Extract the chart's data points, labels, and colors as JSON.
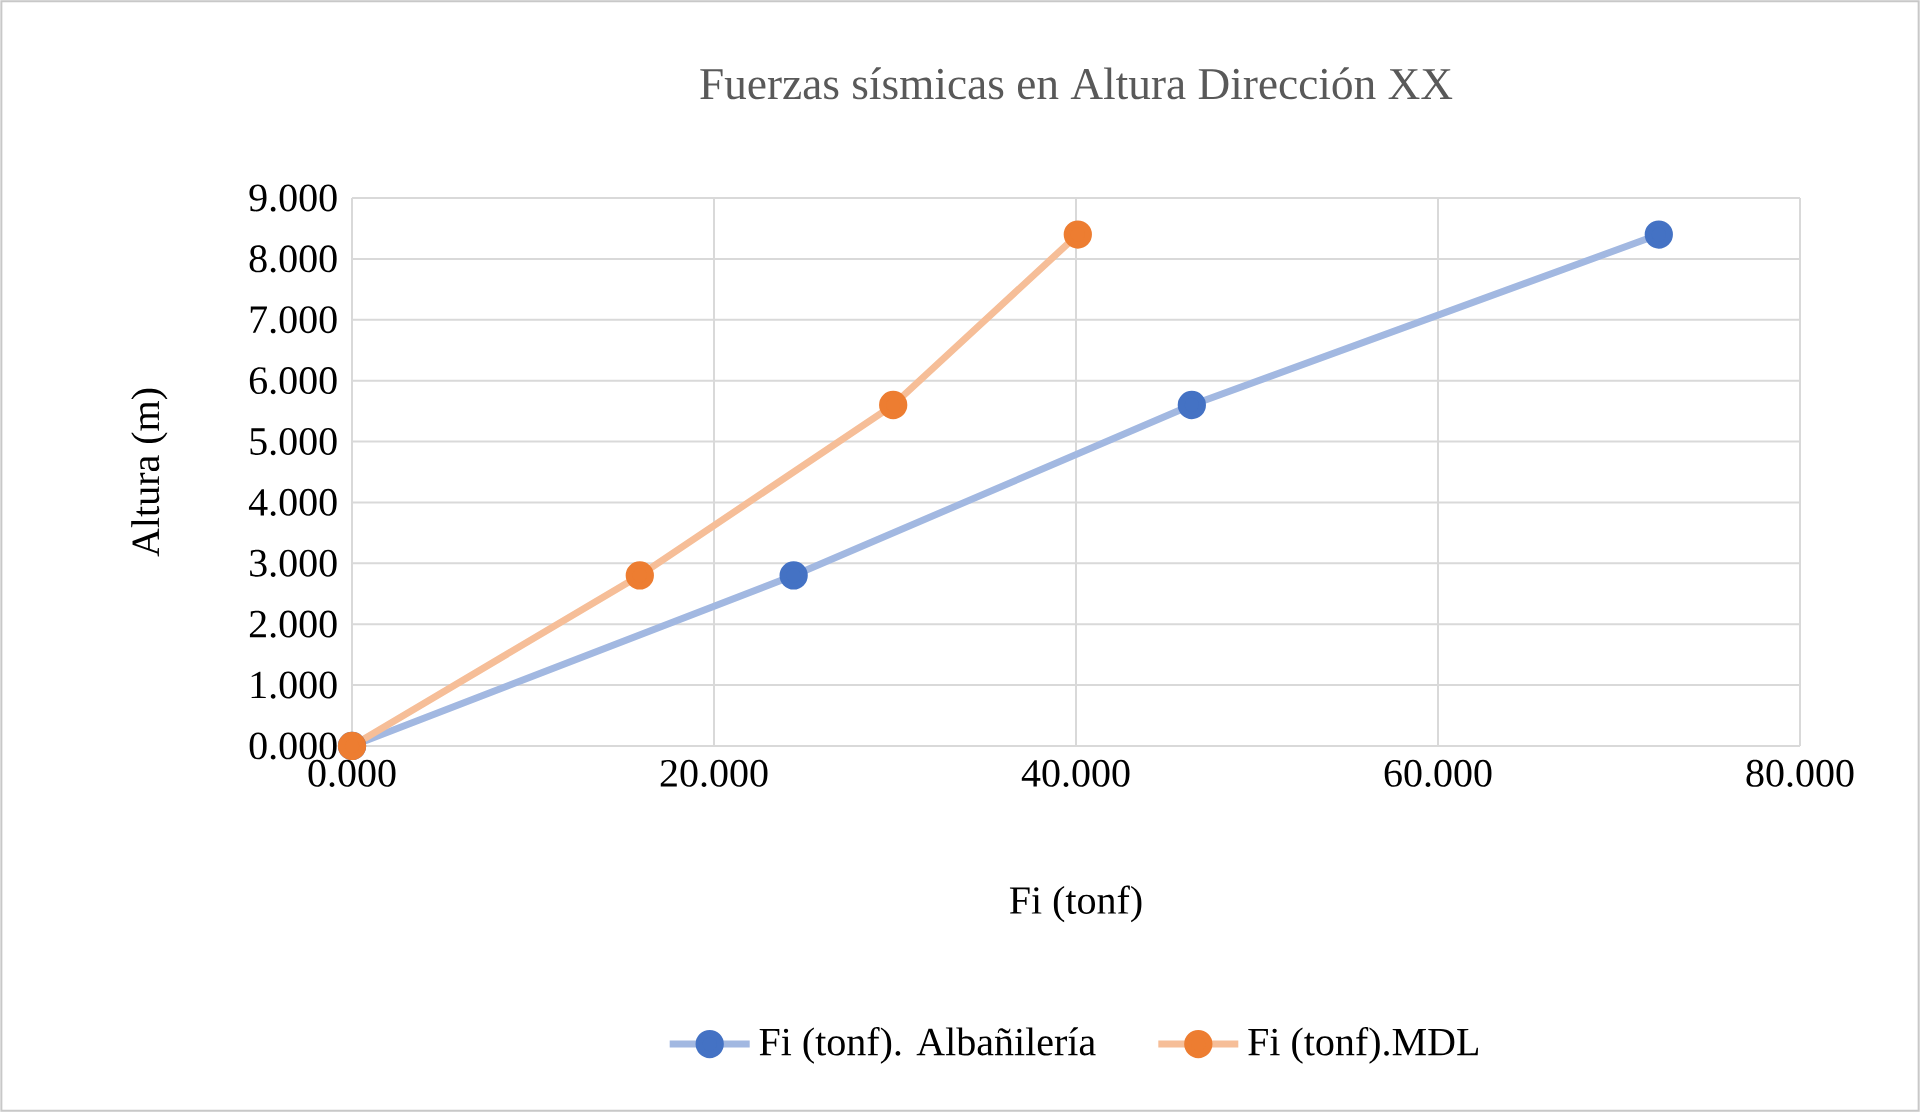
{
  "chart_data": {
    "type": "line",
    "title": "Fuerzas sísmicas en Altura Dirección XX",
    "xlabel": "Fi (tonf)",
    "ylabel": "Altura (m)",
    "series": [
      {
        "name": "Fi (tonf). Albañilería",
        "color": "#4472c4",
        "x": [
          0,
          24.4,
          46.4,
          72.2
        ],
        "values": [
          0,
          2.8,
          5.6,
          8.4
        ]
      },
      {
        "name": "Fi (tonf).MDL",
        "color": "#ed7d31",
        "x": [
          0,
          15.9,
          29.9,
          40.1
        ],
        "values": [
          0,
          2.8,
          5.6,
          8.4
        ]
      }
    ],
    "xlim": [
      0,
      80
    ],
    "ylim": [
      0,
      9
    ],
    "xticks": [
      {
        "value": 0,
        "label": "0.000"
      },
      {
        "value": 20,
        "label": "20.000"
      },
      {
        "value": 40,
        "label": "40.000"
      },
      {
        "value": 60,
        "label": "60.000"
      },
      {
        "value": 80,
        "label": "80.000"
      }
    ],
    "yticks": [
      {
        "value": 0,
        "label": "0.000"
      },
      {
        "value": 1,
        "label": "1.000"
      },
      {
        "value": 2,
        "label": "2.000"
      },
      {
        "value": 3,
        "label": "3.000"
      },
      {
        "value": 4,
        "label": "4.000"
      },
      {
        "value": 5,
        "label": "5.000"
      },
      {
        "value": 6,
        "label": "6.000"
      },
      {
        "value": 7,
        "label": "7.000"
      },
      {
        "value": 8,
        "label": "8.000"
      },
      {
        "value": 9,
        "label": "9.000"
      }
    ],
    "grid": true,
    "legend": "bottom",
    "marker": "circle",
    "line_style": "solid"
  }
}
